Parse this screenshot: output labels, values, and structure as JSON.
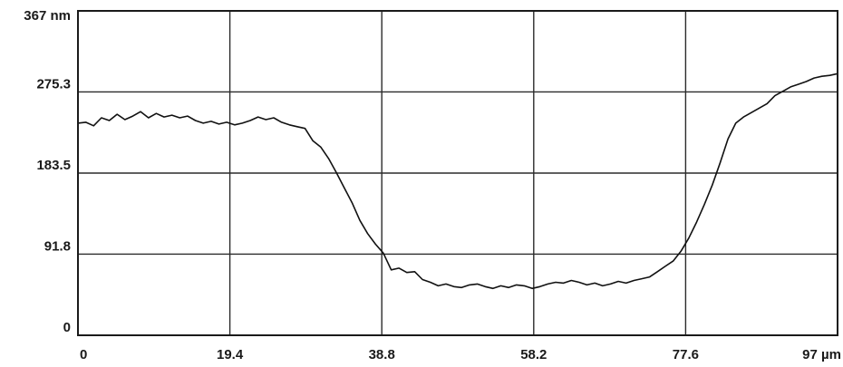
{
  "chart_data": {
    "type": "line",
    "title": "",
    "xlabel": "",
    "ylabel": "",
    "xlim": [
      0,
      97
    ],
    "ylim": [
      0,
      367
    ],
    "grid": true,
    "x_ticks": [
      0,
      19.4,
      38.8,
      58.2,
      77.6,
      97
    ],
    "x_tick_labels": [
      "0",
      "19.4",
      "38.8",
      "58.2",
      "77.6",
      "97 µm"
    ],
    "y_ticks": [
      0,
      91.8,
      183.5,
      275.3,
      367
    ],
    "y_tick_labels": [
      "0",
      "91.8",
      "183.5",
      "275.3",
      "367 nm"
    ],
    "series": [
      {
        "x": [
          0,
          1,
          2,
          3,
          4,
          5,
          6,
          7,
          8,
          9,
          10,
          11,
          12,
          13,
          14,
          15,
          16,
          17,
          18,
          19,
          20,
          21,
          22,
          23,
          24,
          25,
          26,
          27,
          28,
          29,
          30,
          31,
          32,
          33,
          34,
          35,
          36,
          37,
          38,
          39,
          40,
          41,
          42,
          43,
          44,
          45,
          46,
          47,
          48,
          49,
          50,
          51,
          52,
          53,
          54,
          55,
          56,
          57,
          58,
          59,
          60,
          61,
          62,
          63,
          64,
          65,
          66,
          67,
          68,
          69,
          70,
          71,
          72,
          73,
          74,
          75,
          76,
          77,
          78,
          79,
          80,
          81,
          82,
          83,
          84,
          85,
          86,
          87,
          88,
          89,
          90,
          91,
          92,
          93,
          94,
          95,
          96,
          97
        ],
        "values": [
          240,
          241,
          237,
          246,
          243,
          250,
          244,
          248,
          253,
          246,
          251,
          247,
          249,
          246,
          248,
          243,
          240,
          242,
          239,
          241,
          238,
          240,
          243,
          247,
          244,
          246,
          241,
          238,
          236,
          234,
          220,
          213,
          200,
          184,
          167,
          150,
          130,
          115,
          103,
          93,
          74,
          76,
          71,
          72,
          63,
          60,
          56,
          58,
          55,
          54,
          57,
          58,
          55,
          53,
          56,
          54,
          57,
          56,
          53,
          55,
          58,
          60,
          59,
          62,
          60,
          57,
          59,
          56,
          58,
          61,
          59,
          62,
          64,
          66,
          72,
          78,
          84,
          95,
          110,
          128,
          148,
          170,
          195,
          222,
          240,
          247,
          252,
          257,
          262,
          271,
          276,
          281,
          284,
          287,
          291,
          293,
          294,
          296
        ]
      }
    ]
  }
}
